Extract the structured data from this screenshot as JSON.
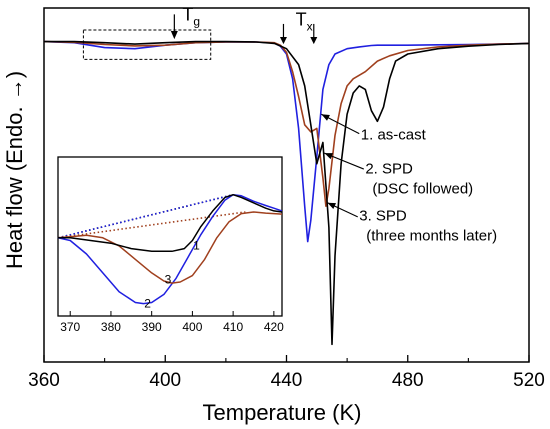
{
  "chart_data": [
    {
      "type": "line",
      "xlabel": "Temperature (K)",
      "ylabel": "Heat flow (Endo. →)",
      "xlim": [
        360,
        520
      ],
      "x_ticks": [
        360,
        400,
        440,
        480,
        520
      ],
      "y_ticks": [],
      "grid": false,
      "colors": {
        "1": "#000000",
        "2": "#2020e0",
        "3": "#a0401e"
      },
      "series": [
        {
          "name": "1. as-cast",
          "x": [
            360,
            370,
            380,
            390,
            400,
            410,
            420,
            430,
            436,
            440,
            444,
            446,
            448,
            450,
            451,
            452,
            454,
            455,
            456,
            458,
            460,
            462,
            464,
            466,
            468,
            470,
            472,
            474,
            476,
            480,
            490,
            500,
            510,
            520
          ],
          "y": [
            0.05,
            0.05,
            0.02,
            -0.02,
            0.02,
            0.05,
            0.05,
            0.04,
            0,
            -0.15,
            -0.6,
            -1.2,
            -2.3,
            -3.4,
            -3.1,
            -2.8,
            -5.2,
            -8.5,
            -6,
            -3.4,
            -2.0,
            -1.4,
            -1.2,
            -1.3,
            -1.9,
            -2.2,
            -1.8,
            -1.0,
            -0.5,
            -0.3,
            -0.15,
            -0.08,
            -0.03,
            0
          ]
        },
        {
          "name": "2. SPD (DSC followed)",
          "x": [
            360,
            370,
            380,
            390,
            400,
            410,
            420,
            430,
            436,
            438,
            440,
            442,
            444,
            446,
            447,
            448,
            450,
            452,
            454,
            456,
            460,
            464,
            468,
            470,
            472,
            474,
            476,
            480,
            490,
            500,
            510,
            520
          ],
          "y": [
            0.05,
            0.02,
            -0.12,
            -0.15,
            -0.05,
            0.02,
            0.04,
            0.04,
            0.01,
            -0.08,
            -0.3,
            -1.0,
            -2.4,
            -4.6,
            -5.6,
            -5.0,
            -3.2,
            -1.3,
            -0.6,
            -0.3,
            -0.15,
            -0.1,
            -0.06,
            -0.05,
            -0.05,
            -0.05,
            -0.05,
            -0.05,
            -0.04,
            -0.03,
            -0.02,
            0
          ]
        },
        {
          "name": "3. SPD (three months later)",
          "x": [
            360,
            370,
            380,
            390,
            400,
            410,
            420,
            430,
            436,
            438,
            440,
            442,
            444,
            446,
            448,
            450,
            452,
            453,
            454,
            456,
            458,
            460,
            462,
            466,
            470,
            474,
            480,
            490,
            500,
            510,
            520
          ],
          "y": [
            0.05,
            0.03,
            -0.03,
            -0.07,
            -0.05,
            0.02,
            0.04,
            0.04,
            0.02,
            -0.05,
            -0.25,
            -0.8,
            -1.5,
            -2.3,
            -2.5,
            -2.4,
            -3.8,
            -4.6,
            -4.1,
            -2.6,
            -1.7,
            -1.2,
            -1.0,
            -0.8,
            -0.5,
            -0.35,
            -0.2,
            -0.1,
            -0.05,
            -0.02,
            0
          ]
        }
      ],
      "annotations": {
        "tg_label": "T",
        "tg_sub": "g",
        "tx_label": "T",
        "tx_sub": "x",
        "labels": [
          {
            "text": "1. as-cast",
            "series": 1
          },
          {
            "text": "2. SPD",
            "series": 2
          },
          {
            "text": "(DSC followed)",
            "series": 2
          },
          {
            "text": "3. SPD",
            "series": 3
          },
          {
            "text": "(three months later)",
            "series": 3
          }
        ]
      }
    },
    {
      "type": "line",
      "inset": true,
      "xlim": [
        367,
        422
      ],
      "x_ticks": [
        370,
        380,
        390,
        400,
        410,
        420
      ],
      "series": [
        {
          "name": "1",
          "x": [
            367,
            370,
            375,
            380,
            385,
            390,
            395,
            398,
            400,
            402,
            405,
            408,
            410,
            412,
            415,
            418,
            420,
            422
          ],
          "y": [
            -0.01,
            -0.01,
            -0.015,
            -0.02,
            -0.03,
            -0.035,
            -0.035,
            -0.03,
            -0.015,
            0.01,
            0.04,
            0.065,
            0.07,
            0.065,
            0.055,
            0.045,
            0.04,
            0.038
          ]
        },
        {
          "name": "2",
          "x": [
            367,
            370,
            374,
            378,
            382,
            386,
            388,
            390,
            393,
            396,
            399,
            402,
            405,
            408,
            410,
            412,
            415,
            418,
            420,
            422
          ],
          "y": [
            -0.01,
            -0.015,
            -0.04,
            -0.075,
            -0.11,
            -0.13,
            -0.132,
            -0.13,
            -0.115,
            -0.085,
            -0.045,
            -0.005,
            0.03,
            0.06,
            0.07,
            0.068,
            0.058,
            0.05,
            0.045,
            0.04
          ]
        },
        {
          "name": "3",
          "x": [
            367,
            370,
            374,
            378,
            382,
            386,
            390,
            393,
            395,
            397,
            400,
            403,
            406,
            409,
            412,
            415,
            418,
            420,
            422
          ],
          "y": [
            -0.01,
            -0.008,
            -0.005,
            -0.01,
            -0.025,
            -0.05,
            -0.075,
            -0.09,
            -0.094,
            -0.092,
            -0.08,
            -0.05,
            -0.01,
            0.02,
            0.035,
            0.038,
            0.036,
            0.035,
            0.034
          ]
        }
      ],
      "dotted_baselines": [
        {
          "series": "1",
          "x": [
            367,
            410
          ],
          "y": [
            -0.01,
            0.07
          ]
        },
        {
          "series": "2",
          "x": [
            367,
            410
          ],
          "y": [
            -0.01,
            0.07
          ]
        },
        {
          "series": "3",
          "x": [
            367,
            413
          ],
          "y": [
            -0.01,
            0.038
          ]
        }
      ],
      "curve_labels": [
        {
          "text": "1",
          "x": 401,
          "y": -0.022
        },
        {
          "text": "2",
          "x": 389,
          "y": -0.13
        },
        {
          "text": "3",
          "x": 394,
          "y": -0.085
        }
      ]
    }
  ]
}
